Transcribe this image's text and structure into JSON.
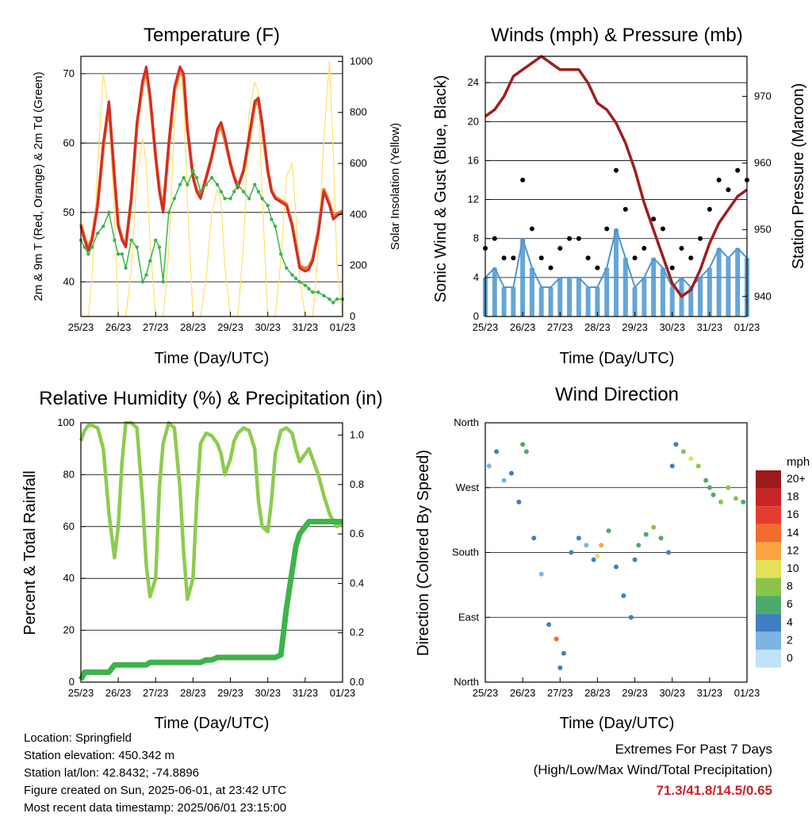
{
  "info": {
    "location": "Location: Springfield",
    "elevation": "Station elevation: 450.342 m",
    "latlon": "Station lat/lon: 42.8432; -74.8896",
    "created": "Figure created on Sun, 2025-06-01, at 23:42 UTC",
    "recent": "Most recent data timestamp: 2025/06/01 23:15:00"
  },
  "extremes": {
    "title": "Extremes For Past 7 Days",
    "subtitle": "(High/Low/Max Wind/Total Precipitation)",
    "values": "71.3/41.8/14.5/0.65",
    "color": "#c8242a"
  },
  "colors": {
    "temp_2m": "#d42a26",
    "temp_9m": "#f07a2a",
    "dewpoint": "#3db34a",
    "solar": "#ffe066",
    "sonic": "#4b97d1",
    "gust": "#000000",
    "pressure": "#a01e1e",
    "rh": "#8ccc4e",
    "rain": "#3db34a"
  },
  "chart_data": [
    {
      "type": "line",
      "title": "Temperature (F)",
      "xlabel": "Time (Day/UTC)",
      "ylabel": "2m & 9m T (Red, Orange) & 2m Td (Green)",
      "y2label": "Solar Insolation (Yellow)",
      "x_ticks": [
        "25/23",
        "26/23",
        "27/23",
        "28/23",
        "29/23",
        "30/23",
        "31/23",
        "01/23"
      ],
      "ylim": [
        35,
        72.5
      ],
      "y_ticks": [
        40,
        50,
        60,
        70
      ],
      "y2lim": [
        0,
        1020
      ],
      "y2_ticks": [
        0,
        200,
        400,
        600,
        800,
        1000
      ],
      "grid": true,
      "x": [
        0,
        0.1,
        0.2,
        0.3,
        0.45,
        0.6,
        0.75,
        0.9,
        1.0,
        1.1,
        1.2,
        1.35,
        1.5,
        1.65,
        1.75,
        1.85,
        2.0,
        2.1,
        2.2,
        2.35,
        2.5,
        2.65,
        2.75,
        2.85,
        3.0,
        3.1,
        3.2,
        3.35,
        3.5,
        3.65,
        3.75,
        3.85,
        4.0,
        4.1,
        4.2,
        4.35,
        4.5,
        4.65,
        4.75,
        4.85,
        5.0,
        5.1,
        5.2,
        5.35,
        5.5,
        5.65,
        5.75,
        5.85,
        6.0,
        6.1,
        6.2,
        6.35,
        6.5,
        6.65,
        6.75,
        6.85,
        7.0
      ],
      "series": [
        {
          "name": "2m T",
          "values": [
            48,
            46,
            44.5,
            46,
            51,
            60,
            66,
            55,
            48,
            46,
            45,
            52,
            63,
            69,
            71,
            67,
            58,
            53,
            50,
            60,
            68,
            71,
            70,
            62,
            55,
            53,
            52,
            55,
            58,
            62,
            63,
            61,
            57,
            55,
            53.5,
            56,
            61,
            66,
            66.5,
            63,
            56,
            53,
            52,
            51.5,
            51,
            48,
            45,
            42,
            41.5,
            41.8,
            43,
            47,
            53,
            51,
            49,
            49.5,
            50
          ]
        },
        {
          "name": "9m T",
          "values": [
            48.3,
            46.3,
            44.8,
            46.3,
            51.2,
            59.5,
            65.5,
            55,
            48.3,
            46.3,
            45.3,
            52,
            62.5,
            68.5,
            70.5,
            66.5,
            58,
            53.3,
            50.3,
            59.5,
            67.5,
            70.5,
            69.5,
            62,
            55.2,
            53.2,
            52.2,
            55,
            58,
            61.5,
            62.5,
            60.5,
            57,
            55.2,
            53.8,
            56,
            60.5,
            65.5,
            66,
            62.5,
            56,
            53.2,
            52.2,
            51.7,
            51.2,
            48.3,
            45.3,
            42.3,
            41.9,
            42.2,
            43.3,
            47.3,
            53.3,
            51.3,
            49.3,
            49.8,
            50.2
          ]
        },
        {
          "name": "2m Td",
          "values": [
            46,
            45,
            44,
            45,
            47,
            48,
            50,
            46,
            44,
            44,
            42,
            46,
            45,
            40,
            41,
            43,
            46,
            45,
            40,
            50,
            52,
            54,
            55,
            54,
            56,
            55,
            53,
            54,
            55,
            54,
            53,
            52,
            52,
            53,
            54,
            53,
            52,
            54,
            53,
            52,
            51,
            49,
            48,
            44,
            42,
            41,
            40.5,
            40,
            39.5,
            39,
            38.5,
            38.5,
            38,
            37.5,
            37,
            37.5,
            37.5
          ]
        },
        {
          "name": "Solar",
          "axis": "y2",
          "values": [
            0,
            0,
            0,
            150,
            600,
            950,
            800,
            400,
            0,
            0,
            0,
            180,
            550,
            700,
            600,
            300,
            0,
            0,
            0,
            250,
            750,
            980,
            850,
            450,
            0,
            0,
            0,
            150,
            400,
            500,
            450,
            200,
            0,
            0,
            0,
            280,
            800,
            920,
            880,
            480,
            0,
            0,
            0,
            220,
            550,
            600,
            400,
            150,
            0,
            0,
            0,
            250,
            700,
            1000,
            650,
            200,
            0
          ]
        }
      ]
    },
    {
      "type": "scatter",
      "title": "Winds (mph) & Pressure (mb)",
      "xlabel": "Time (Day/UTC)",
      "ylabel": "Sonic Wind & Gust (Blue, Black)",
      "y2label": "Station Pressure (Maroon)",
      "x_ticks": [
        "25/23",
        "26/23",
        "27/23",
        "28/23",
        "29/23",
        "30/23",
        "31/23",
        "01/23"
      ],
      "ylim": [
        0,
        26.7
      ],
      "y_ticks": [
        0,
        4,
        8,
        12,
        16,
        20,
        24
      ],
      "y2lim": [
        937,
        976
      ],
      "y2_ticks": [
        940,
        950,
        960,
        970
      ],
      "grid": true,
      "x": [
        0,
        0.25,
        0.5,
        0.75,
        1.0,
        1.25,
        1.5,
        1.75,
        2.0,
        2.25,
        2.5,
        2.75,
        3.0,
        3.25,
        3.5,
        3.75,
        4.0,
        4.25,
        4.5,
        4.75,
        5.0,
        5.25,
        5.5,
        5.75,
        6.0,
        6.25,
        6.5,
        6.75,
        7.0
      ],
      "series": [
        {
          "name": "Sonic Wind",
          "values": [
            4,
            5,
            3,
            3,
            8,
            5,
            3,
            3,
            4,
            4,
            4,
            3,
            3,
            5,
            9,
            6,
            3,
            4,
            6,
            5,
            3,
            4,
            3,
            4,
            5,
            7,
            6,
            7,
            6
          ]
        },
        {
          "name": "Gust",
          "values": [
            7,
            8,
            6,
            6,
            14,
            9,
            6,
            5,
            7,
            8,
            8,
            6,
            5,
            9,
            15,
            11,
            6,
            7,
            10,
            9,
            5,
            7,
            6,
            8,
            11,
            14,
            13,
            15,
            14
          ]
        },
        {
          "name": "Pressure",
          "axis": "y2",
          "values": [
            967,
            968,
            970,
            973,
            974,
            975,
            976,
            975,
            974,
            974,
            974,
            972,
            969,
            968,
            966,
            963,
            959,
            954,
            950,
            946,
            942,
            940,
            941,
            944,
            948,
            951,
            953,
            955,
            956
          ]
        }
      ]
    },
    {
      "type": "line",
      "title": "Relative Humidity (%) & Precipitation (in)",
      "xlabel": "Time (Day/UTC)",
      "ylabel": "Percent & Total Rainfall",
      "x_ticks": [
        "25/23",
        "26/23",
        "27/23",
        "28/23",
        "29/23",
        "30/23",
        "31/23",
        "01/23"
      ],
      "ylim": [
        0,
        100
      ],
      "y_ticks": [
        0,
        20,
        40,
        60,
        80,
        100
      ],
      "y2lim": [
        0,
        1.05
      ],
      "y2_ticks": [
        0.0,
        0.2,
        0.4,
        0.6,
        0.8,
        1.0
      ],
      "grid": true,
      "x": [
        0,
        0.1,
        0.2,
        0.3,
        0.45,
        0.6,
        0.75,
        0.9,
        1.0,
        1.1,
        1.2,
        1.35,
        1.5,
        1.65,
        1.75,
        1.85,
        2.0,
        2.1,
        2.2,
        2.35,
        2.5,
        2.65,
        2.75,
        2.85,
        3.0,
        3.1,
        3.2,
        3.35,
        3.5,
        3.65,
        3.75,
        3.85,
        4.0,
        4.1,
        4.2,
        4.35,
        4.5,
        4.65,
        4.75,
        4.85,
        5.0,
        5.1,
        5.2,
        5.35,
        5.5,
        5.65,
        5.75,
        5.85,
        6.0,
        6.1,
        6.2,
        6.35,
        6.5,
        6.65,
        6.75,
        6.85,
        7.0
      ],
      "series": [
        {
          "name": "RH",
          "values": [
            93,
            97,
            99,
            99,
            98,
            90,
            65,
            48,
            60,
            85,
            100,
            100,
            98,
            70,
            45,
            33,
            40,
            75,
            92,
            100,
            98,
            75,
            50,
            32,
            40,
            70,
            92,
            96,
            95,
            92,
            88,
            80,
            86,
            93,
            96,
            98,
            97,
            90,
            70,
            60,
            58,
            70,
            88,
            97,
            98,
            96,
            90,
            85,
            88,
            90,
            86,
            80,
            72,
            65,
            62,
            60,
            61
          ]
        },
        {
          "name": "Total Rainfall",
          "axis": "y2",
          "values": [
            0.01,
            0.04,
            0.04,
            0.04,
            0.04,
            0.04,
            0.04,
            0.07,
            0.07,
            0.07,
            0.07,
            0.07,
            0.07,
            0.07,
            0.07,
            0.08,
            0.08,
            0.08,
            0.08,
            0.08,
            0.08,
            0.08,
            0.08,
            0.08,
            0.08,
            0.08,
            0.08,
            0.09,
            0.09,
            0.1,
            0.1,
            0.1,
            0.1,
            0.1,
            0.1,
            0.1,
            0.1,
            0.1,
            0.1,
            0.1,
            0.1,
            0.1,
            0.1,
            0.11,
            0.3,
            0.45,
            0.55,
            0.6,
            0.63,
            0.65,
            0.65,
            0.65,
            0.65,
            0.65,
            0.65,
            0.65,
            0.65
          ]
        }
      ]
    },
    {
      "type": "scatter",
      "title": "Wind Direction",
      "xlabel": "Time (Day/UTC)",
      "ylabel": "Direction (Colored By Speed)",
      "x_ticks": [
        "25/23",
        "26/23",
        "27/23",
        "28/23",
        "29/23",
        "30/23",
        "31/23",
        "01/23"
      ],
      "y_ticks": [
        "North",
        "East",
        "South",
        "West",
        "North"
      ],
      "ylim": [
        0,
        360
      ],
      "grid": true,
      "legend_title": "mph",
      "legend_labels": [
        "20+",
        "18",
        "16",
        "14",
        "12",
        "10",
        "8",
        "6",
        "4",
        "2",
        "0"
      ],
      "legend_colors": [
        "#9b1a1d",
        "#c8242a",
        "#e43d2f",
        "#f26b2f",
        "#f9a541",
        "#e3e158",
        "#8cc34d",
        "#4daa6a",
        "#3f7fc1",
        "#7db4e3",
        "#bfe3f7"
      ],
      "x": [
        0.1,
        0.3,
        0.5,
        0.7,
        0.9,
        1.0,
        1.1,
        1.3,
        1.5,
        1.7,
        1.9,
        2.0,
        2.1,
        2.3,
        2.5,
        2.7,
        2.9,
        3.0,
        3.1,
        3.3,
        3.5,
        3.7,
        3.9,
        4.0,
        4.1,
        4.3,
        4.5,
        4.7,
        4.9,
        5.0,
        5.1,
        5.3,
        5.5,
        5.7,
        5.9,
        6.0,
        6.1,
        6.3,
        6.5,
        6.7,
        6.9
      ],
      "values": [
        300,
        320,
        280,
        290,
        250,
        330,
        320,
        200,
        150,
        80,
        60,
        20,
        40,
        180,
        200,
        190,
        170,
        175,
        190,
        210,
        160,
        120,
        90,
        170,
        190,
        205,
        215,
        200,
        180,
        300,
        330,
        320,
        310,
        300,
        280,
        270,
        260,
        250,
        270,
        255,
        250
      ],
      "speeds": [
        2,
        3,
        2,
        4,
        3,
        6,
        5,
        3,
        2,
        3,
        14,
        4,
        3,
        4,
        3,
        2,
        4,
        9,
        11,
        6,
        4,
        3,
        3,
        4,
        6,
        5,
        8,
        6,
        4,
        3,
        4,
        8,
        9,
        7,
        6,
        5,
        6,
        7,
        8,
        7,
        6
      ]
    }
  ]
}
